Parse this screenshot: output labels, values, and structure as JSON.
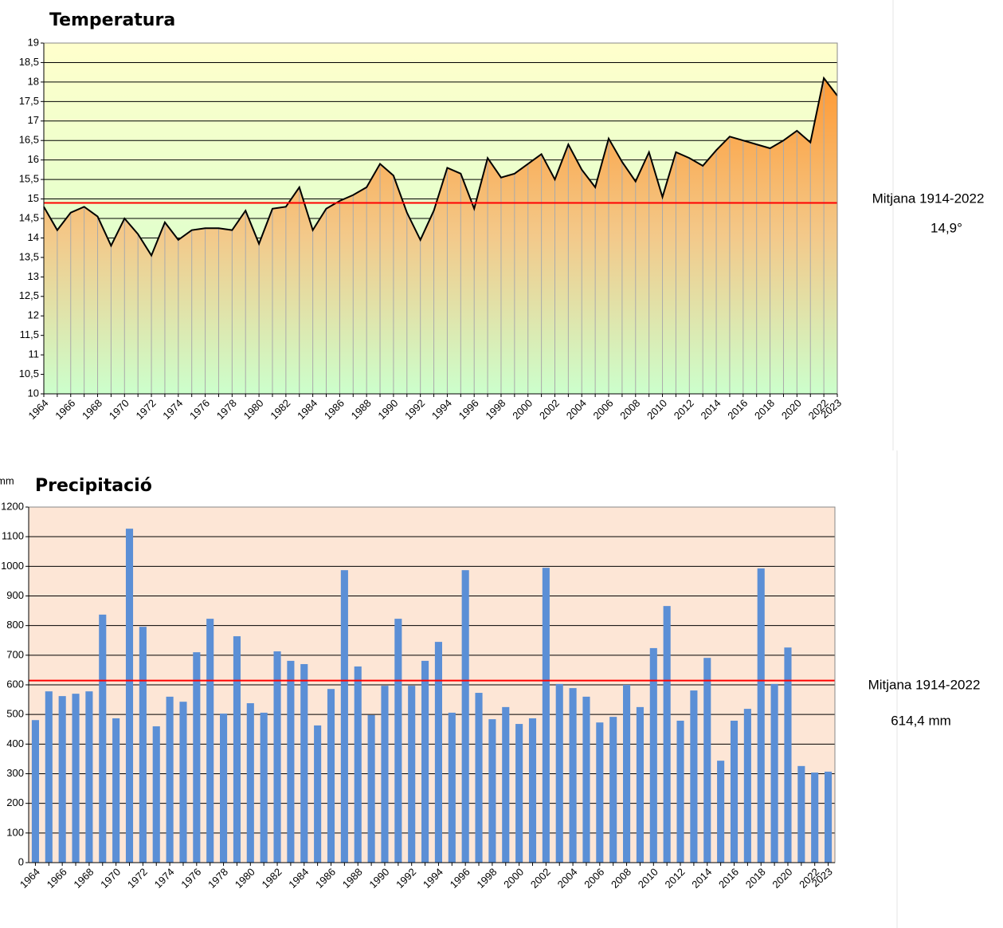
{
  "chart_data": [
    {
      "type": "area",
      "title": "Temperatura",
      "categories": [
        "1964",
        null,
        "1966",
        null,
        "1968",
        null,
        "1970",
        null,
        "1972",
        null,
        "1974",
        null,
        "1976",
        null,
        "1978",
        null,
        "1980",
        null,
        "1982",
        null,
        "1984",
        null,
        "1986",
        null,
        "1988",
        null,
        "1990",
        null,
        "1992",
        null,
        "1994",
        null,
        "1996",
        null,
        "1998",
        null,
        "2000",
        null,
        "2002",
        null,
        "2004",
        null,
        "2006",
        null,
        "2008",
        null,
        "2010",
        null,
        "2012",
        null,
        "2014",
        null,
        "2016",
        null,
        "2018",
        null,
        "2020",
        null,
        "2022",
        "2023"
      ],
      "values": [
        14.8,
        14.2,
        14.65,
        14.8,
        14.55,
        13.8,
        14.5,
        14.1,
        13.55,
        14.4,
        13.95,
        14.2,
        14.25,
        14.25,
        14.2,
        14.7,
        13.85,
        14.75,
        14.8,
        15.3,
        14.2,
        14.75,
        14.95,
        15.1,
        15.3,
        15.9,
        15.6,
        14.65,
        13.95,
        14.7,
        15.8,
        15.65,
        14.75,
        16.05,
        15.55,
        15.65,
        15.9,
        16.15,
        15.5,
        16.4,
        15.75,
        15.3,
        16.55,
        15.95,
        15.45,
        16.2,
        15.05,
        16.2,
        16.05,
        15.85,
        16.25,
        16.6,
        16.5,
        16.4,
        16.3,
        16.5,
        16.75,
        16.45,
        18.1,
        17.65
      ],
      "color": "#000000",
      "fill_color": "#ff9933",
      "ylim": [
        10,
        19
      ],
      "yticks": [
        10,
        {
          "value": 10.5,
          "label": "10,5"
        },
        11,
        {
          "value": 11.5,
          "label": "11,5"
        },
        12,
        {
          "value": 12.5,
          "label": "12,5"
        },
        13,
        {
          "value": 13.5,
          "label": "13,5"
        },
        14,
        {
          "value": 14.5,
          "label": "14,5"
        },
        15,
        {
          "value": 15.5,
          "label": "15,5"
        },
        16,
        {
          "value": 16.5,
          "label": "16,5"
        },
        17,
        {
          "value": 17.5,
          "label": "17,5"
        },
        18,
        {
          "value": 18.5,
          "label": "18,5"
        },
        19
      ],
      "grid": true,
      "mean": {
        "label": "Mitjana 1914-2022",
        "value": 14.9,
        "value_label": "14,9°",
        "color": "#ff0000"
      }
    },
    {
      "type": "bar",
      "title": "Precipitació",
      "y_label": "mm",
      "categories": [
        "1964",
        null,
        "1966",
        null,
        "1968",
        null,
        "1970",
        null,
        "1972",
        null,
        "1974",
        null,
        "1976",
        null,
        "1978",
        null,
        "1980",
        null,
        "1982",
        null,
        "1984",
        null,
        "1986",
        null,
        "1988",
        null,
        "1990",
        null,
        "1992",
        null,
        "1994",
        null,
        "1996",
        null,
        "1998",
        null,
        "2000",
        null,
        "2002",
        null,
        "2004",
        null,
        "2006",
        null,
        "2008",
        null,
        "2010",
        null,
        "2012",
        null,
        "2014",
        null,
        "2016",
        null,
        "2018",
        null,
        "2020",
        null,
        "2022",
        "2023"
      ],
      "values": [
        481,
        578,
        562,
        570,
        578,
        837,
        487,
        1127,
        796,
        460,
        560,
        543,
        710,
        823,
        503,
        764,
        538,
        506,
        713,
        681,
        670,
        463,
        586,
        987,
        662,
        498,
        597,
        823,
        597,
        681,
        745,
        506,
        987,
        573,
        484,
        525,
        468,
        487,
        995,
        603,
        589,
        560,
        473,
        492,
        600,
        525,
        724,
        866,
        479,
        581,
        691,
        344,
        479,
        519,
        993,
        603,
        726,
        326,
        304,
        307
      ],
      "color": "#5b8fd6",
      "ylim": [
        0,
        1200
      ],
      "yticks": [
        0,
        100,
        200,
        300,
        400,
        500,
        600,
        700,
        800,
        900,
        1000,
        1100,
        1200
      ],
      "grid": true,
      "mean": {
        "label": "Mitjana 1914-2022",
        "value": 614.4,
        "value_label": "614,4 mm",
        "color": "#ff0000"
      }
    }
  ]
}
